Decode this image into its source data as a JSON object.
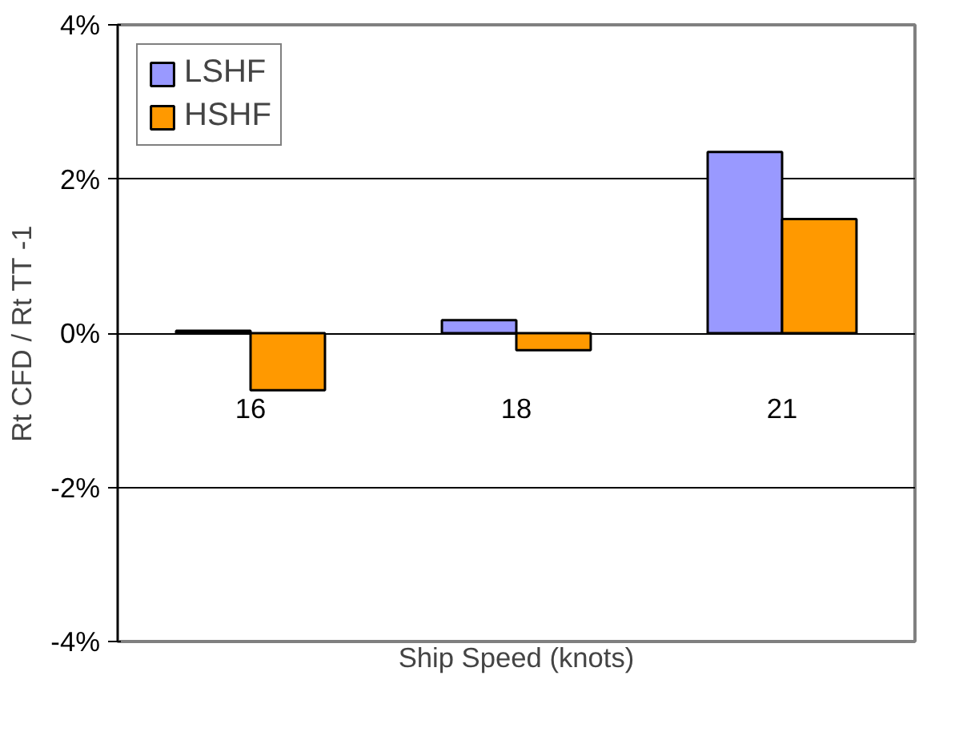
{
  "chart_data": {
    "type": "bar",
    "xlabel": "Ship Speed (knots)",
    "ylabel": "Rt CFD / Rt TT -1",
    "categories": [
      "16",
      "18",
      "21"
    ],
    "series": [
      {
        "name": "LSHF",
        "color": "#9999ff",
        "values": [
          0.03,
          0.17,
          2.35
        ]
      },
      {
        "name": "HSHF",
        "color": "#ff9900",
        "values": [
          -0.74,
          -0.22,
          1.48
        ]
      }
    ],
    "ylim": [
      -4,
      4
    ],
    "yticks": [
      {
        "value": -4,
        "label": "-4%"
      },
      {
        "value": -2,
        "label": "-2%"
      },
      {
        "value": 0,
        "label": "0%"
      },
      {
        "value": 2,
        "label": "2%"
      },
      {
        "value": 4,
        "label": "4%"
      }
    ],
    "grid": "y",
    "legend": "top left"
  }
}
